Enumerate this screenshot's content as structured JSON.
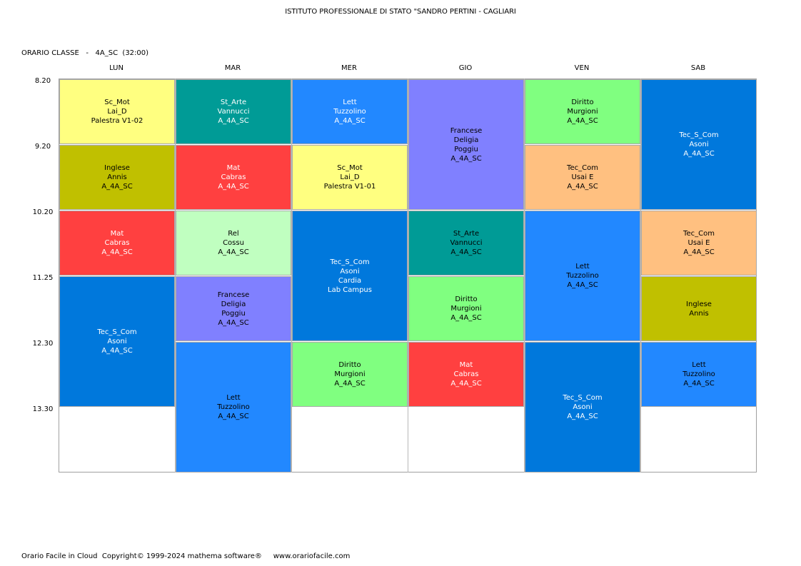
{
  "header": {
    "school": "ISTITUTO PROFESSIONALE DI STATO \"SANDRO PERTINI - CAGLIARI",
    "class_label": "ORARIO CLASSE   -   4A_SC  (32:00)"
  },
  "days": [
    "LUN",
    "MAR",
    "MER",
    "GIO",
    "VEN",
    "SAB"
  ],
  "times": [
    "8.20",
    "9.20",
    "10.20",
    "11.25",
    "12.30",
    "13.30"
  ],
  "colors": {
    "yellow": "#ffff80",
    "teal": "#009b96",
    "blue": "#2288ff",
    "lavender": "#8080ff",
    "green": "#80ff80",
    "darkblue": "#0078dc",
    "olive": "#c0c000",
    "red": "#ff4040",
    "orange": "#ffc080",
    "lightgreen": "#c0ffc0"
  },
  "lessons": [
    {
      "day": 0,
      "start": 0,
      "span": 1,
      "color": "yellow",
      "text_color": "#000000",
      "lines": [
        "Sc_Mot",
        "Lai_D",
        "Palestra V1-02"
      ]
    },
    {
      "day": 0,
      "start": 1,
      "span": 1,
      "color": "olive",
      "text_color": "#000000",
      "lines": [
        "Inglese",
        "Annis",
        "A_4A_SC"
      ]
    },
    {
      "day": 0,
      "start": 2,
      "span": 1,
      "color": "red",
      "text_color": "#ffffff",
      "lines": [
        "Mat",
        "Cabras",
        "A_4A_SC"
      ]
    },
    {
      "day": 0,
      "start": 3,
      "span": 2,
      "color": "darkblue",
      "text_color": "#ffffff",
      "lines": [
        "Tec_S_Com",
        "Asoni",
        "A_4A_SC"
      ]
    },
    {
      "day": 1,
      "start": 0,
      "span": 1,
      "color": "teal",
      "text_color": "#ffffff",
      "lines": [
        "St_Arte",
        "Vannucci",
        "A_4A_SC"
      ]
    },
    {
      "day": 1,
      "start": 1,
      "span": 1,
      "color": "red",
      "text_color": "#ffffff",
      "lines": [
        "Mat",
        "Cabras",
        "A_4A_SC"
      ]
    },
    {
      "day": 1,
      "start": 2,
      "span": 1,
      "color": "lightgreen",
      "text_color": "#000000",
      "lines": [
        "Rel",
        "Cossu",
        "A_4A_SC"
      ]
    },
    {
      "day": 1,
      "start": 3,
      "span": 1,
      "color": "lavender",
      "text_color": "#000000",
      "lines": [
        "Francese",
        "Deligia",
        "Poggiu",
        "A_4A_SC"
      ]
    },
    {
      "day": 1,
      "start": 4,
      "span": 2,
      "color": "blue",
      "text_color": "#000000",
      "lines": [
        "Lett",
        "Tuzzolino",
        "A_4A_SC"
      ]
    },
    {
      "day": 2,
      "start": 0,
      "span": 1,
      "color": "blue",
      "text_color": "#ffffff",
      "lines": [
        "Lett",
        "Tuzzolino",
        "A_4A_SC"
      ]
    },
    {
      "day": 2,
      "start": 1,
      "span": 1,
      "color": "yellow",
      "text_color": "#000000",
      "lines": [
        "Sc_Mot",
        "Lai_D",
        "Palestra V1-01"
      ]
    },
    {
      "day": 2,
      "start": 2,
      "span": 2,
      "color": "darkblue",
      "text_color": "#ffffff",
      "lines": [
        "Tec_S_Com",
        "Asoni",
        "Cardia",
        "Lab Campus"
      ]
    },
    {
      "day": 2,
      "start": 4,
      "span": 1,
      "color": "green",
      "text_color": "#000000",
      "lines": [
        "Diritto",
        "Murgioni",
        "A_4A_SC"
      ]
    },
    {
      "day": 3,
      "start": 0,
      "span": 2,
      "color": "lavender",
      "text_color": "#000000",
      "lines": [
        "Francese",
        "Deligia",
        "Poggiu",
        "A_4A_SC"
      ]
    },
    {
      "day": 3,
      "start": 2,
      "span": 1,
      "color": "teal",
      "text_color": "#000000",
      "lines": [
        "St_Arte",
        "Vannucci",
        "A_4A_SC"
      ]
    },
    {
      "day": 3,
      "start": 3,
      "span": 1,
      "color": "green",
      "text_color": "#000000",
      "lines": [
        "Diritto",
        "Murgioni",
        "A_4A_SC"
      ]
    },
    {
      "day": 3,
      "start": 4,
      "span": 1,
      "color": "red",
      "text_color": "#ffffff",
      "lines": [
        "Mat",
        "Cabras",
        "A_4A_SC"
      ]
    },
    {
      "day": 4,
      "start": 0,
      "span": 1,
      "color": "green",
      "text_color": "#000000",
      "lines": [
        "Diritto",
        "Murgioni",
        "A_4A_SC"
      ]
    },
    {
      "day": 4,
      "start": 1,
      "span": 1,
      "color": "orange",
      "text_color": "#000000",
      "lines": [
        "Tec_Com",
        "Usai E",
        "A_4A_SC"
      ]
    },
    {
      "day": 4,
      "start": 2,
      "span": 2,
      "color": "blue",
      "text_color": "#000000",
      "lines": [
        "Lett",
        "Tuzzolino",
        "A_4A_SC"
      ]
    },
    {
      "day": 4,
      "start": 4,
      "span": 2,
      "color": "darkblue",
      "text_color": "#ffffff",
      "lines": [
        "Tec_S_Com",
        "Asoni",
        "A_4A_SC"
      ]
    },
    {
      "day": 5,
      "start": 0,
      "span": 2,
      "color": "darkblue",
      "text_color": "#ffffff",
      "lines": [
        "Tec_S_Com",
        "Asoni",
        "A_4A_SC"
      ]
    },
    {
      "day": 5,
      "start": 2,
      "span": 1,
      "color": "orange",
      "text_color": "#000000",
      "lines": [
        "Tec_Com",
        "Usai E",
        "A_4A_SC"
      ]
    },
    {
      "day": 5,
      "start": 3,
      "span": 1,
      "color": "olive",
      "text_color": "#000000",
      "lines": [
        "Inglese",
        "Annis"
      ]
    },
    {
      "day": 5,
      "start": 4,
      "span": 1,
      "color": "blue",
      "text_color": "#000000",
      "lines": [
        "Lett",
        "Tuzzolino",
        "A_4A_SC"
      ]
    }
  ],
  "footer": "Orario Facile in Cloud  Copyright© 1999-2024 mathema software®     www.orariofacile.com"
}
